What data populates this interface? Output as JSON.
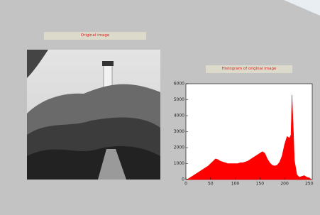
{
  "image_label": "Original image",
  "chart_data": {
    "type": "area",
    "title": "Histogram of  original image",
    "x": [
      0,
      5,
      10,
      15,
      20,
      25,
      30,
      35,
      40,
      45,
      50,
      55,
      60,
      65,
      70,
      75,
      80,
      85,
      90,
      95,
      100,
      105,
      110,
      115,
      120,
      125,
      130,
      135,
      140,
      145,
      150,
      155,
      160,
      165,
      170,
      175,
      180,
      185,
      190,
      195,
      200,
      205,
      210,
      213,
      215,
      218,
      220,
      225,
      230,
      235,
      240,
      245,
      250,
      255
    ],
    "values": [
      0,
      50,
      150,
      250,
      350,
      450,
      550,
      650,
      750,
      850,
      1000,
      1150,
      1300,
      1250,
      1150,
      1100,
      1050,
      1000,
      1000,
      1000,
      1000,
      1000,
      1050,
      1050,
      1100,
      1150,
      1250,
      1350,
      1450,
      1550,
      1650,
      1750,
      1650,
      1300,
      1050,
      900,
      850,
      900,
      1100,
      1500,
      2200,
      2700,
      2600,
      2800,
      5300,
      3000,
      1200,
      300,
      150,
      200,
      250,
      150,
      100,
      0
    ],
    "color": "#ff0000",
    "xlim": [
      0,
      256
    ],
    "xticks": [
      0,
      50,
      100,
      150,
      200,
      250
    ],
    "ylim": [
      0,
      6000
    ],
    "yticks": [
      0,
      1000,
      2000,
      3000,
      4000,
      5000,
      6000
    ]
  }
}
